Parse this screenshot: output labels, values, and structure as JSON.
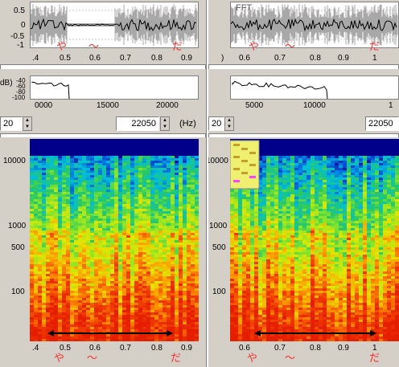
{
  "left": {
    "waveform": {
      "yticks": [
        "0.5",
        "0",
        "-0.5",
        "-1"
      ],
      "xticks": [
        ".4",
        "0.5",
        "0.6",
        "0.7",
        "0.8",
        "0.9"
      ],
      "annotations": [
        "や",
        "〜",
        "だ"
      ]
    },
    "spectrum": {
      "yticks": [
        "dB)",
        "-40",
        "-60",
        "-80",
        "-100"
      ],
      "xticks": [
        "0000",
        "15000",
        "20000"
      ]
    },
    "controls": {
      "left_value": "20",
      "freq_value": "22050",
      "unit": "(Hz)"
    },
    "spectrogram": {
      "yticks": [
        "10000",
        "1000",
        "500",
        "100"
      ],
      "xticks": [
        ".4",
        "0.5",
        "0.6",
        "0.7",
        "0.8",
        "0.9"
      ],
      "annotations": [
        "や",
        "〜",
        "だ"
      ]
    }
  },
  "right": {
    "waveform": {
      "title": "FFT",
      "xticks": [
        ")",
        "0.6",
        "0.7",
        "0.8",
        "0.9",
        "1"
      ],
      "annotations": [
        "や",
        "〜",
        "だ"
      ]
    },
    "spectrum": {
      "xticks": [
        "5000",
        "10000",
        "1"
      ]
    },
    "controls": {
      "left_value": "20",
      "freq_value": "22050"
    },
    "spectrogram": {
      "yticks": [
        "10000",
        "1000",
        "500",
        "100"
      ],
      "xticks": [
        "0.6",
        "0.7",
        "0.8",
        "0.9",
        "1"
      ],
      "annotations": [
        "や",
        "〜",
        "だ"
      ]
    }
  },
  "colors": {
    "annotation": "#ff2a2a",
    "waveform_grey": "#a8a8a8",
    "spectrogram_top": "#00008b"
  }
}
